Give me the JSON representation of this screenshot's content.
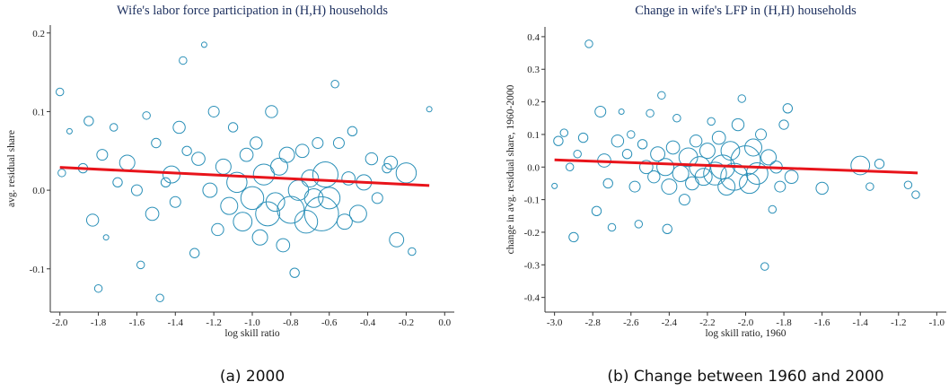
{
  "chart_data": [
    {
      "type": "scatter",
      "title": "Wife's labor force participation in (H,H) households",
      "xlabel": "log skill ratio",
      "ylabel": "avg. residual share",
      "caption": "(a) 2000",
      "xlim": [
        -2.05,
        0.05
      ],
      "ylim": [
        -0.155,
        0.21
      ],
      "xticks": [
        {
          "value": -2.0,
          "label": "-2.0"
        },
        -1.8,
        -1.6,
        -1.4,
        -1.2,
        {
          "value": -1.0,
          "label": "-1.0"
        },
        -0.8,
        -0.6,
        -0.4,
        -0.2,
        {
          "value": 0.0,
          "label": "0.0"
        }
      ],
      "yticks": [
        0.2,
        0.1,
        {
          "value": 0.0,
          "label": "0.0"
        },
        -0.1
      ],
      "series": [
        {
          "type": "scatter",
          "color": "#2b90b8",
          "x": [
            -2.0,
            -1.99,
            -1.95,
            -1.88,
            -1.85,
            -1.83,
            -1.8,
            -1.78,
            -1.76,
            -1.72,
            -1.7,
            -1.65,
            -1.6,
            -1.58,
            -1.55,
            -1.52,
            -1.5,
            -1.48,
            -1.45,
            -1.42,
            -1.4,
            -1.38,
            -1.36,
            -1.34,
            -1.3,
            -1.28,
            -1.25,
            -1.22,
            -1.2,
            -1.18,
            -1.15,
            -1.12,
            -1.1,
            -1.08,
            -1.05,
            -1.03,
            -1.0,
            -0.98,
            -0.96,
            -0.94,
            -0.92,
            -0.9,
            -0.88,
            -0.86,
            -0.84,
            -0.82,
            -0.8,
            -0.78,
            -0.76,
            -0.74,
            -0.72,
            -0.7,
            -0.68,
            -0.66,
            -0.64,
            -0.62,
            -0.6,
            -0.57,
            -0.55,
            -0.52,
            -0.5,
            -0.48,
            -0.45,
            -0.42,
            -0.38,
            -0.35,
            -0.3,
            -0.28,
            -0.25,
            -0.2,
            -0.17,
            -0.08
          ],
          "values": [
            0.125,
            0.022,
            0.075,
            0.028,
            0.088,
            -0.038,
            -0.125,
            0.045,
            -0.06,
            0.08,
            0.01,
            0.035,
            0.0,
            -0.095,
            0.095,
            -0.03,
            0.06,
            -0.137,
            0.01,
            0.02,
            -0.015,
            0.08,
            0.165,
            0.05,
            -0.08,
            0.04,
            0.185,
            0.0,
            0.1,
            -0.05,
            0.03,
            -0.02,
            0.08,
            0.01,
            -0.04,
            0.045,
            -0.01,
            0.06,
            -0.06,
            0.02,
            -0.03,
            0.1,
            -0.015,
            0.03,
            -0.07,
            0.045,
            -0.025,
            -0.105,
            0.0,
            0.05,
            -0.04,
            0.015,
            -0.01,
            0.06,
            -0.03,
            0.02,
            -0.01,
            0.135,
            0.06,
            -0.04,
            0.015,
            0.075,
            -0.03,
            0.01,
            0.04,
            -0.01,
            0.028,
            0.035,
            -0.063,
            0.022,
            -0.078,
            0.103
          ],
          "sizes": [
            2,
            2,
            1,
            3,
            3,
            5,
            2,
            4,
            1,
            2,
            3,
            8,
            4,
            2,
            2,
            6,
            3,
            2,
            3,
            10,
            4,
            5,
            2,
            3,
            3,
            6,
            1,
            7,
            4,
            5,
            8,
            10,
            3,
            14,
            12,
            6,
            18,
            5,
            8,
            15,
            20,
            5,
            12,
            10,
            6,
            8,
            25,
            3,
            14,
            6,
            18,
            10,
            12,
            4,
            40,
            22,
            16,
            2,
            4,
            8,
            6,
            3,
            10,
            8,
            5,
            4,
            3,
            6,
            7,
            14,
            2,
            1
          ]
        },
        {
          "type": "line",
          "color": "#e8141b",
          "x": [
            -2.0,
            -0.08
          ],
          "values": [
            0.029,
            0.006
          ]
        }
      ]
    },
    {
      "type": "scatter",
      "title": "Change in wife's LFP in (H,H) households",
      "xlabel": "log skill ratio, 1960",
      "ylabel": "change in avg. residual share, 1960-2000",
      "caption": "(b) Change between 1960 and 2000",
      "xlim": [
        -3.05,
        -0.95
      ],
      "ylim": [
        -0.445,
        0.43
      ],
      "xticks": [
        {
          "value": -3.0,
          "label": "-3.0"
        },
        -2.8,
        -2.6,
        -2.4,
        -2.2,
        {
          "value": -2.0,
          "label": "-2.0"
        },
        -1.8,
        -1.6,
        -1.4,
        -1.2,
        {
          "value": -1.0,
          "label": "-1.0"
        }
      ],
      "yticks": [
        0.4,
        0.3,
        0.2,
        0.1,
        {
          "value": 0.0,
          "label": "0.0"
        },
        -0.1,
        -0.2,
        -0.3,
        -0.4
      ],
      "series": [
        {
          "type": "scatter",
          "color": "#2b90b8",
          "x": [
            -3.0,
            -2.98,
            -2.95,
            -2.92,
            -2.9,
            -2.88,
            -2.85,
            -2.82,
            -2.78,
            -2.76,
            -2.74,
            -2.72,
            -2.7,
            -2.67,
            -2.65,
            -2.62,
            -2.6,
            -2.58,
            -2.56,
            -2.54,
            -2.52,
            -2.5,
            -2.48,
            -2.46,
            -2.44,
            -2.42,
            -2.41,
            -2.4,
            -2.38,
            -2.36,
            -2.34,
            -2.32,
            -2.3,
            -2.28,
            -2.26,
            -2.24,
            -2.22,
            -2.2,
            -2.18,
            -2.16,
            -2.14,
            -2.12,
            -2.1,
            -2.08,
            -2.06,
            -2.04,
            -2.02,
            -2.0,
            -1.98,
            -1.96,
            -1.94,
            -1.92,
            -1.9,
            -1.88,
            -1.86,
            -1.84,
            -1.82,
            -1.8,
            -1.78,
            -1.76,
            -1.6,
            -1.4,
            -1.35,
            -1.3,
            -1.15,
            -1.11
          ],
          "values": [
            -0.058,
            0.08,
            0.105,
            0.0,
            -0.215,
            0.04,
            0.09,
            0.378,
            -0.135,
            0.17,
            0.02,
            -0.05,
            -0.185,
            0.08,
            0.17,
            0.04,
            0.1,
            -0.06,
            -0.175,
            0.07,
            0.0,
            0.165,
            -0.03,
            0.04,
            0.22,
            0.0,
            -0.19,
            -0.06,
            0.06,
            0.15,
            -0.02,
            -0.1,
            0.03,
            -0.05,
            0.08,
            0.0,
            -0.03,
            0.05,
            0.14,
            -0.02,
            0.09,
            0.0,
            -0.06,
            0.05,
            -0.03,
            0.13,
            0.21,
            0.02,
            -0.05,
            0.06,
            -0.02,
            0.1,
            -0.305,
            0.03,
            -0.13,
            0.0,
            -0.06,
            0.13,
            0.18,
            -0.03,
            -0.065,
            0.005,
            -0.06,
            0.01,
            -0.055,
            -0.085
          ],
          "sizes": [
            1,
            3,
            2,
            2,
            3,
            2,
            3,
            2,
            3,
            4,
            6,
            3,
            2,
            5,
            1,
            3,
            2,
            4,
            2,
            3,
            6,
            2,
            5,
            7,
            2,
            10,
            3,
            8,
            6,
            2,
            9,
            4,
            12,
            6,
            5,
            15,
            10,
            8,
            2,
            18,
            6,
            20,
            10,
            12,
            25,
            5,
            2,
            30,
            14,
            10,
            16,
            4,
            2,
            8,
            2,
            5,
            4,
            3,
            3,
            6,
            5,
            12,
            2,
            3,
            2,
            2
          ]
        },
        {
          "type": "line",
          "color": "#e8141b",
          "x": [
            -3.0,
            -1.1
          ],
          "values": [
            0.022,
            -0.018
          ]
        }
      ]
    }
  ]
}
